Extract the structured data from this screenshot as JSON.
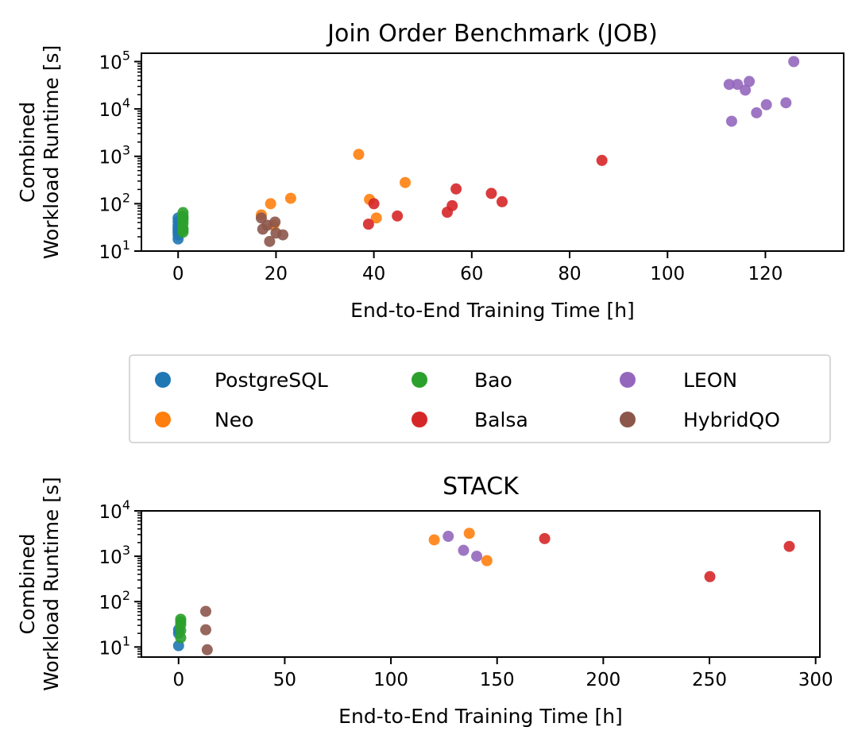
{
  "legend": {
    "placement": "between-plots",
    "entries": [
      {
        "name": "PostgreSQL",
        "color": "#1f77b4"
      },
      {
        "name": "Bao",
        "color": "#2ca02c"
      },
      {
        "name": "LEON",
        "color": "#9467bd"
      },
      {
        "name": "Neo",
        "color": "#ff7f0e"
      },
      {
        "name": "Balsa",
        "color": "#d62728"
      },
      {
        "name": "HybridQO",
        "color": "#8c564b"
      }
    ]
  },
  "chart_data": [
    {
      "type": "scatter",
      "title": "Join Order Benchmark (JOB)",
      "xlabel": "End-to-End Training Time [h]",
      "ylabel": [
        "Combined",
        "Workload Runtime [s]"
      ],
      "xlim": [
        -7.5,
        136
      ],
      "ylim": [
        10,
        150000
      ],
      "yscale": "log",
      "xticks": [
        0,
        20,
        40,
        60,
        80,
        100,
        120
      ],
      "yticks": [
        {
          "exp": "1"
        },
        {
          "exp": "2"
        },
        {
          "exp": "3"
        },
        {
          "exp": "4"
        },
        {
          "exp": "5"
        }
      ],
      "ytick_base": "10",
      "series": [
        {
          "name": "PostgreSQL",
          "points": [
            [
              0,
              18
            ],
            [
              0,
              22
            ],
            [
              0,
              28
            ],
            [
              0,
              35
            ],
            [
              0,
              42
            ],
            [
              0,
              50
            ],
            [
              0,
              25
            ],
            [
              0,
              31
            ]
          ]
        },
        {
          "name": "Bao",
          "points": [
            [
              1,
              25
            ],
            [
              1,
              30
            ],
            [
              1,
              38
            ],
            [
              1,
              45
            ],
            [
              1,
              55
            ],
            [
              1,
              65
            ],
            [
              1,
              28
            ],
            [
              1,
              50
            ]
          ]
        },
        {
          "name": "LEON",
          "points": [
            [
              125.8,
              100000
            ],
            [
              112.6,
              33000
            ],
            [
              114.3,
              33000
            ],
            [
              116.7,
              38000
            ],
            [
              115.9,
              25000
            ],
            [
              113.1,
              5500
            ],
            [
              118.2,
              8300
            ],
            [
              120.2,
              12300
            ],
            [
              124.2,
              13500
            ]
          ]
        },
        {
          "name": "Neo",
          "points": [
            [
              36.9,
              1100
            ],
            [
              18.9,
              100
            ],
            [
              23.0,
              130
            ],
            [
              46.4,
              280
            ],
            [
              39.1,
              123
            ],
            [
              40.5,
              50
            ],
            [
              17.0,
              58
            ],
            [
              19.5,
              35
            ]
          ]
        },
        {
          "name": "Balsa",
          "points": [
            [
              40.0,
              100
            ],
            [
              38.9,
              37
            ],
            [
              44.8,
              55
            ],
            [
              56.8,
              205
            ],
            [
              56.0,
              91
            ],
            [
              55.0,
              66
            ],
            [
              64.0,
              165
            ],
            [
              66.2,
              110
            ],
            [
              86.6,
              820
            ]
          ]
        },
        {
          "name": "HybridQO",
          "points": [
            [
              17.0,
              50
            ],
            [
              19.8,
              41
            ],
            [
              17.3,
              29
            ],
            [
              20.0,
              24
            ],
            [
              21.4,
              22
            ],
            [
              18.7,
              16
            ],
            [
              18.2,
              35
            ]
          ]
        }
      ]
    },
    {
      "type": "scatter",
      "title": "STACK",
      "xlabel": "End-to-End Training Time [h]",
      "ylabel": [
        "Combined",
        "Workload Runtime [s]"
      ],
      "xlim": [
        -17.5,
        302
      ],
      "ylim": [
        6,
        10000
      ],
      "yscale": "log",
      "xticks": [
        0,
        50,
        100,
        150,
        200,
        250,
        300
      ],
      "yticks": [
        {
          "exp": "1"
        },
        {
          "exp": "2"
        },
        {
          "exp": "3"
        },
        {
          "exp": "4"
        }
      ],
      "ytick_base": "10",
      "series": [
        {
          "name": "PostgreSQL",
          "points": [
            [
              0,
              24
            ],
            [
              0,
              10.7
            ],
            [
              0,
              20
            ]
          ]
        },
        {
          "name": "Bao",
          "points": [
            [
              1,
              41
            ],
            [
              1,
              31
            ],
            [
              1,
              16
            ],
            [
              1,
              23
            ],
            [
              1,
              36
            ]
          ]
        },
        {
          "name": "LEON",
          "points": [
            [
              127,
              2750
            ],
            [
              134.2,
              1350
            ],
            [
              140.4,
              1000
            ]
          ]
        },
        {
          "name": "Neo",
          "points": [
            [
              120.4,
              2300
            ],
            [
              136.9,
              3200
            ],
            [
              145.2,
              800
            ]
          ]
        },
        {
          "name": "Balsa",
          "points": [
            [
              172.4,
              2450
            ],
            [
              287.6,
              1650
            ],
            [
              250.2,
              355
            ]
          ]
        },
        {
          "name": "HybridQO",
          "points": [
            [
              12.8,
              61
            ],
            [
              12.8,
              24
            ],
            [
              13.5,
              8.7
            ]
          ]
        }
      ]
    }
  ]
}
